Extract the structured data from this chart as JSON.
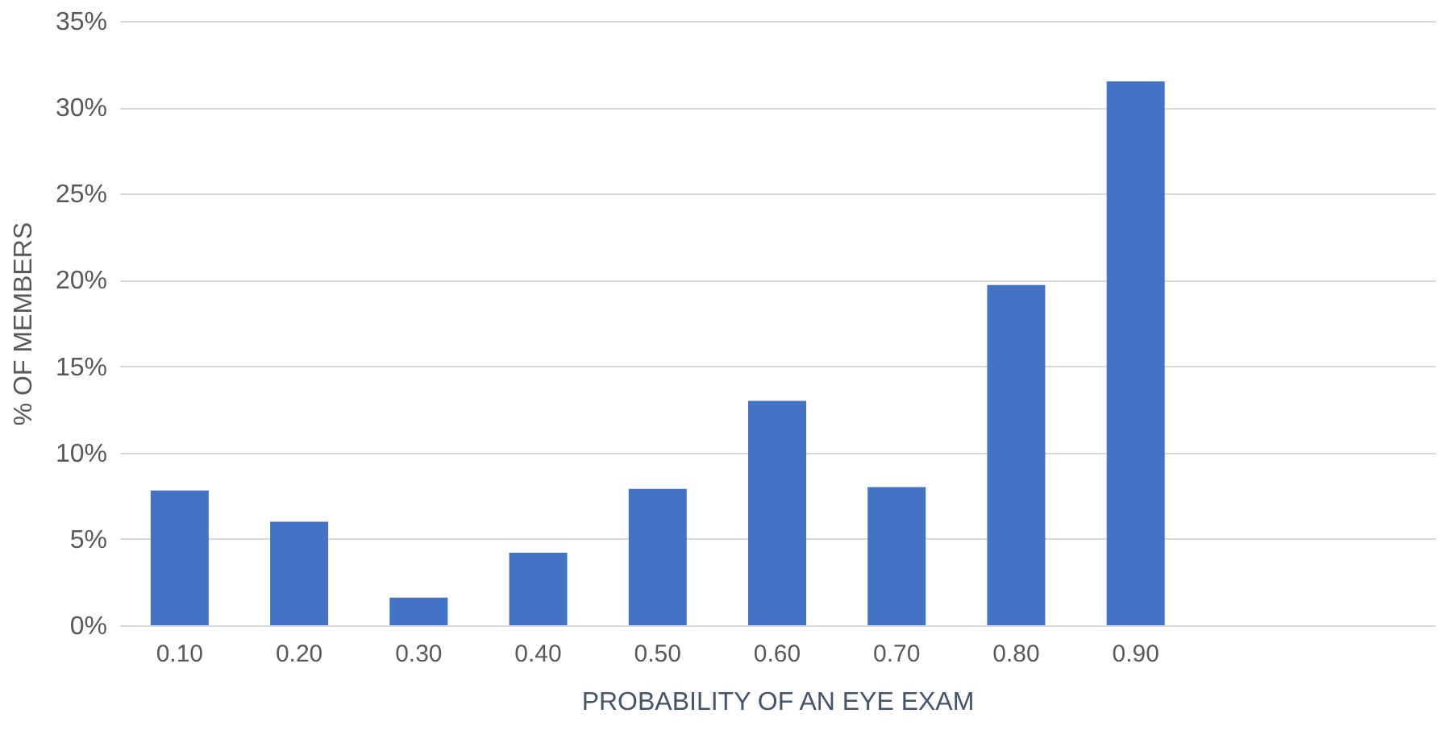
{
  "chart_data": {
    "type": "bar",
    "xlabel": "PROBABILITY OF AN EYE EXAM",
    "ylabel": "% OF MEMBERS",
    "categories": [
      "0.10",
      "0.20",
      "0.30",
      "0.40",
      "0.50",
      "0.60",
      "0.70",
      "0.80",
      "0.90",
      null,
      null
    ],
    "values": [
      7.8,
      6.0,
      1.6,
      4.2,
      7.9,
      13.0,
      8.0,
      19.7,
      31.5,
      null,
      null
    ],
    "color": "#4472c4",
    "ylim": [
      0,
      35
    ],
    "yticks": [
      {
        "value": 0,
        "label": "0%"
      },
      {
        "value": 5,
        "label": "5%"
      },
      {
        "value": 10,
        "label": "10%"
      },
      {
        "value": 15,
        "label": "15%"
      },
      {
        "value": 20,
        "label": "20%"
      },
      {
        "value": 25,
        "label": "25%"
      },
      {
        "value": 30,
        "label": "30%"
      },
      {
        "value": 35,
        "label": "35%"
      }
    ],
    "grid": "y"
  }
}
